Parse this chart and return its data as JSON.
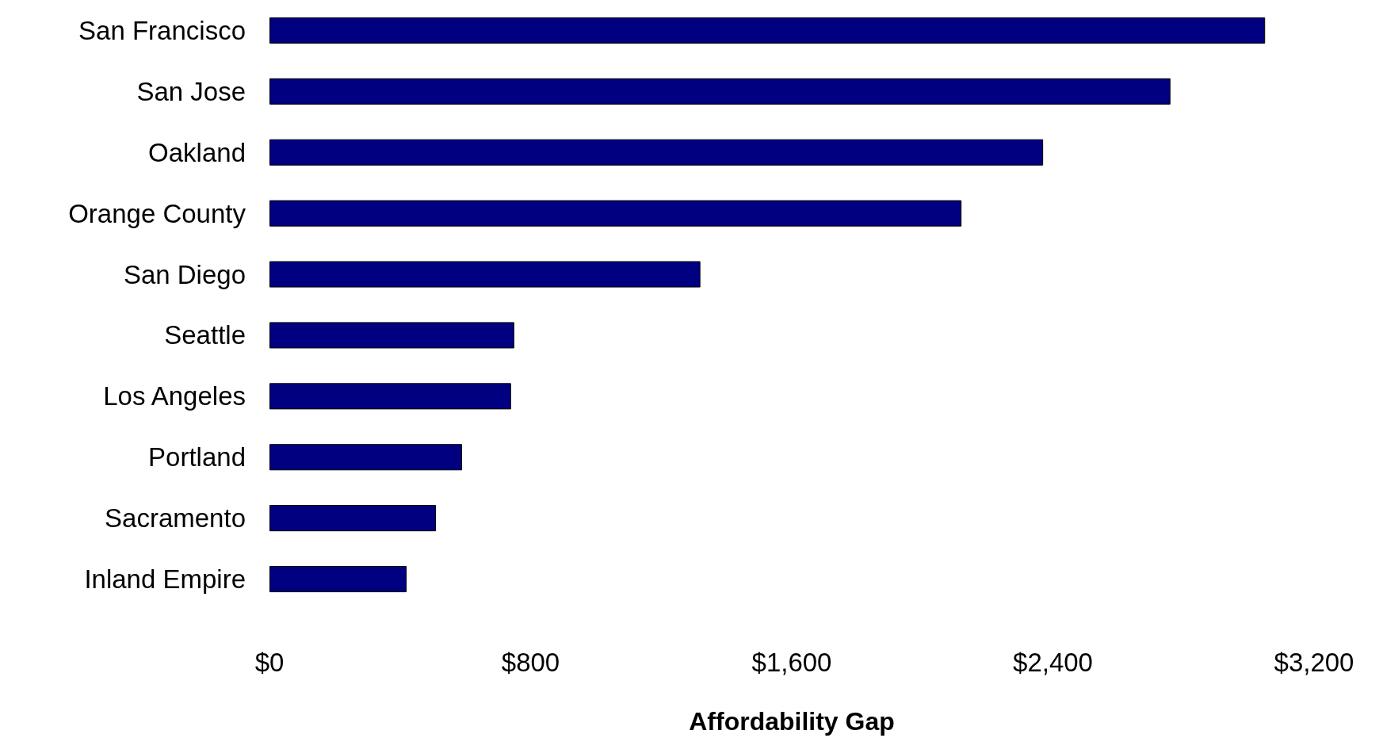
{
  "chart_data": {
    "type": "bar",
    "orientation": "horizontal",
    "xlabel": "Affordability Gap",
    "categories": [
      "San Francisco",
      "San Jose",
      "Oakland",
      "Orange County",
      "San Diego",
      "Seattle",
      "Los Angeles",
      "Portland",
      "Sacramento",
      "Inland Empire"
    ],
    "values": [
      3050,
      2760,
      2370,
      2120,
      1320,
      750,
      740,
      590,
      510,
      420
    ],
    "color": "#000080",
    "xlim": [
      0,
      3200
    ],
    "xticks": [
      {
        "value": 0,
        "label": "$0"
      },
      {
        "value": 800,
        "label": "$800"
      },
      {
        "value": 1600,
        "label": "$1,600"
      },
      {
        "value": 2400,
        "label": "$2,400"
      },
      {
        "value": 3200,
        "label": "$3,200"
      }
    ],
    "grid": false
  }
}
